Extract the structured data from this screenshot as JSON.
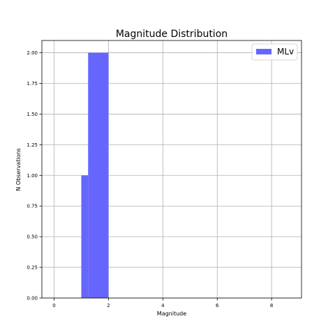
{
  "chart_data": {
    "type": "bar",
    "title": "Magnitude Distribution",
    "xlabel": "Magnitude",
    "ylabel": "N Observations",
    "xlim": [
      -0.45,
      9.1
    ],
    "ylim": [
      0,
      2.1
    ],
    "xticks": [
      0,
      2,
      4,
      6,
      8
    ],
    "yticks": [
      0.0,
      0.25,
      0.5,
      0.75,
      1.0,
      1.25,
      1.5,
      1.75,
      2.0
    ],
    "ytick_labels": [
      "0.00",
      "0.25",
      "0.50",
      "0.75",
      "1.00",
      "1.25",
      "1.50",
      "1.75",
      "2.00"
    ],
    "grid": true,
    "legend_position": "top-right",
    "series": [
      {
        "name": "MLv",
        "color": "#6666ff",
        "bins": [
          {
            "x0": 1.0,
            "x1": 1.25,
            "count": 1
          },
          {
            "x0": 1.25,
            "x1": 2.0,
            "count": 2
          }
        ]
      }
    ]
  }
}
